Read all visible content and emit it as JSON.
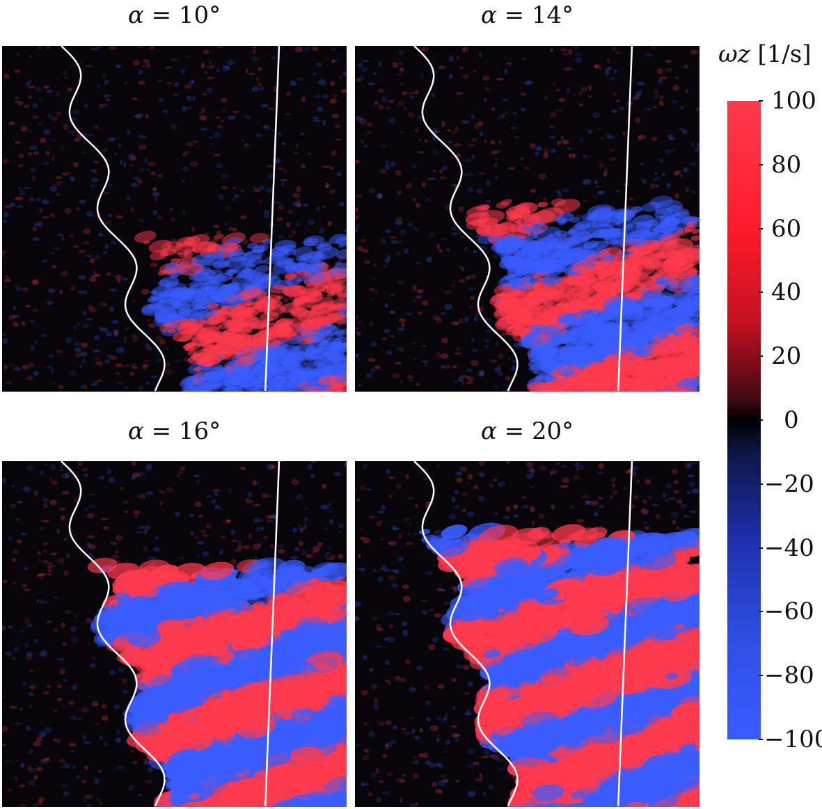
{
  "panels": [
    {
      "id": "p10",
      "sym": "α = ",
      "value": "10°",
      "intensity": 0.22,
      "region_start": 0.55
    },
    {
      "id": "p14",
      "sym": "α = ",
      "value": "14°",
      "intensity": 0.4,
      "region_start": 0.45
    },
    {
      "id": "p16",
      "sym": "α = ",
      "value": "16°",
      "intensity": 0.85,
      "region_start": 0.3
    },
    {
      "id": "p20",
      "sym": "α = ",
      "value": "20°",
      "intensity": 0.95,
      "region_start": 0.2
    }
  ],
  "colorbar": {
    "symbol": "ωz",
    "unit": "[1/s]",
    "ticks": [
      "100",
      "80",
      "60",
      "40",
      "20",
      "0",
      "−20",
      "−40",
      "−60",
      "−80",
      "−100"
    ],
    "color_positive": "#ff3a4e",
    "color_negative": "#3a5cff",
    "color_zero": "#000000"
  }
}
